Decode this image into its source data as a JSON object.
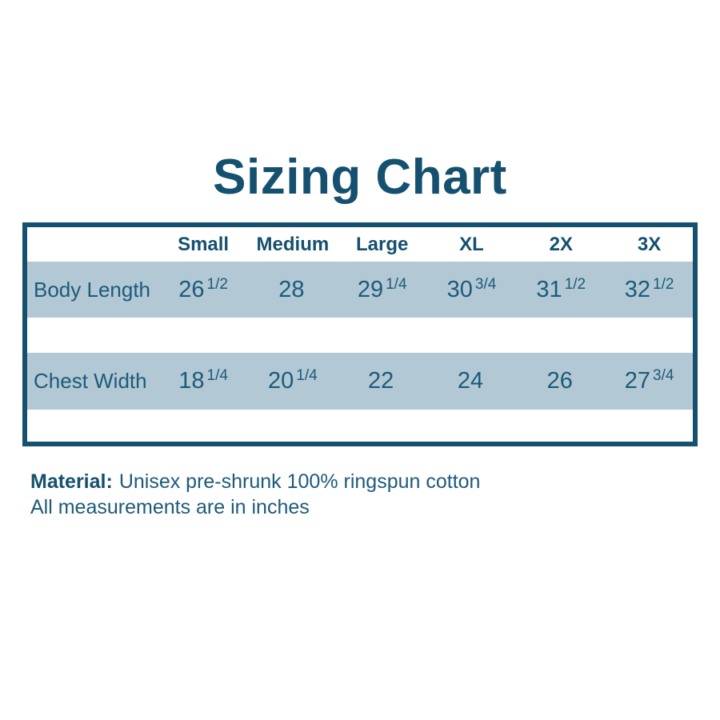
{
  "title": "Sizing Chart",
  "colors": {
    "accent": "#15506f",
    "row_bg": "#b2c8d4",
    "text": "#1d5a7a"
  },
  "table": {
    "headers": [
      "Small",
      "Medium",
      "Large",
      "XL",
      "2X",
      "3X"
    ],
    "rows": [
      {
        "label": "Body Length",
        "cells": [
          {
            "whole": "26",
            "frac": "1/2"
          },
          {
            "whole": "28",
            "frac": ""
          },
          {
            "whole": "29",
            "frac": "1/4"
          },
          {
            "whole": "30",
            "frac": "3/4"
          },
          {
            "whole": "31",
            "frac": "1/2"
          },
          {
            "whole": "32",
            "frac": "1/2"
          }
        ]
      },
      {
        "label": "Chest Width",
        "cells": [
          {
            "whole": "18",
            "frac": "1/4"
          },
          {
            "whole": "20",
            "frac": "1/4"
          },
          {
            "whole": "22",
            "frac": ""
          },
          {
            "whole": "24",
            "frac": ""
          },
          {
            "whole": "26",
            "frac": ""
          },
          {
            "whole": "27",
            "frac": "3/4"
          }
        ]
      }
    ]
  },
  "notes": {
    "material_label": "Material:",
    "material_text": "Unisex pre-shrunk 100% ringspun cotton",
    "measurements": "All measurements are in inches"
  },
  "chart_data": {
    "type": "table",
    "title": "Sizing Chart",
    "columns": [
      "Small",
      "Medium",
      "Large",
      "XL",
      "2X",
      "3X"
    ],
    "rows": [
      {
        "label": "Body Length",
        "values": [
          26.5,
          28,
          29.25,
          30.75,
          31.5,
          32.5
        ]
      },
      {
        "label": "Chest Width",
        "values": [
          18.25,
          20.25,
          22,
          24,
          26,
          27.75
        ]
      }
    ],
    "units": "inches",
    "notes": [
      "Material: Unisex pre-shrunk 100% ringspun cotton",
      "All measurements are in inches"
    ]
  }
}
